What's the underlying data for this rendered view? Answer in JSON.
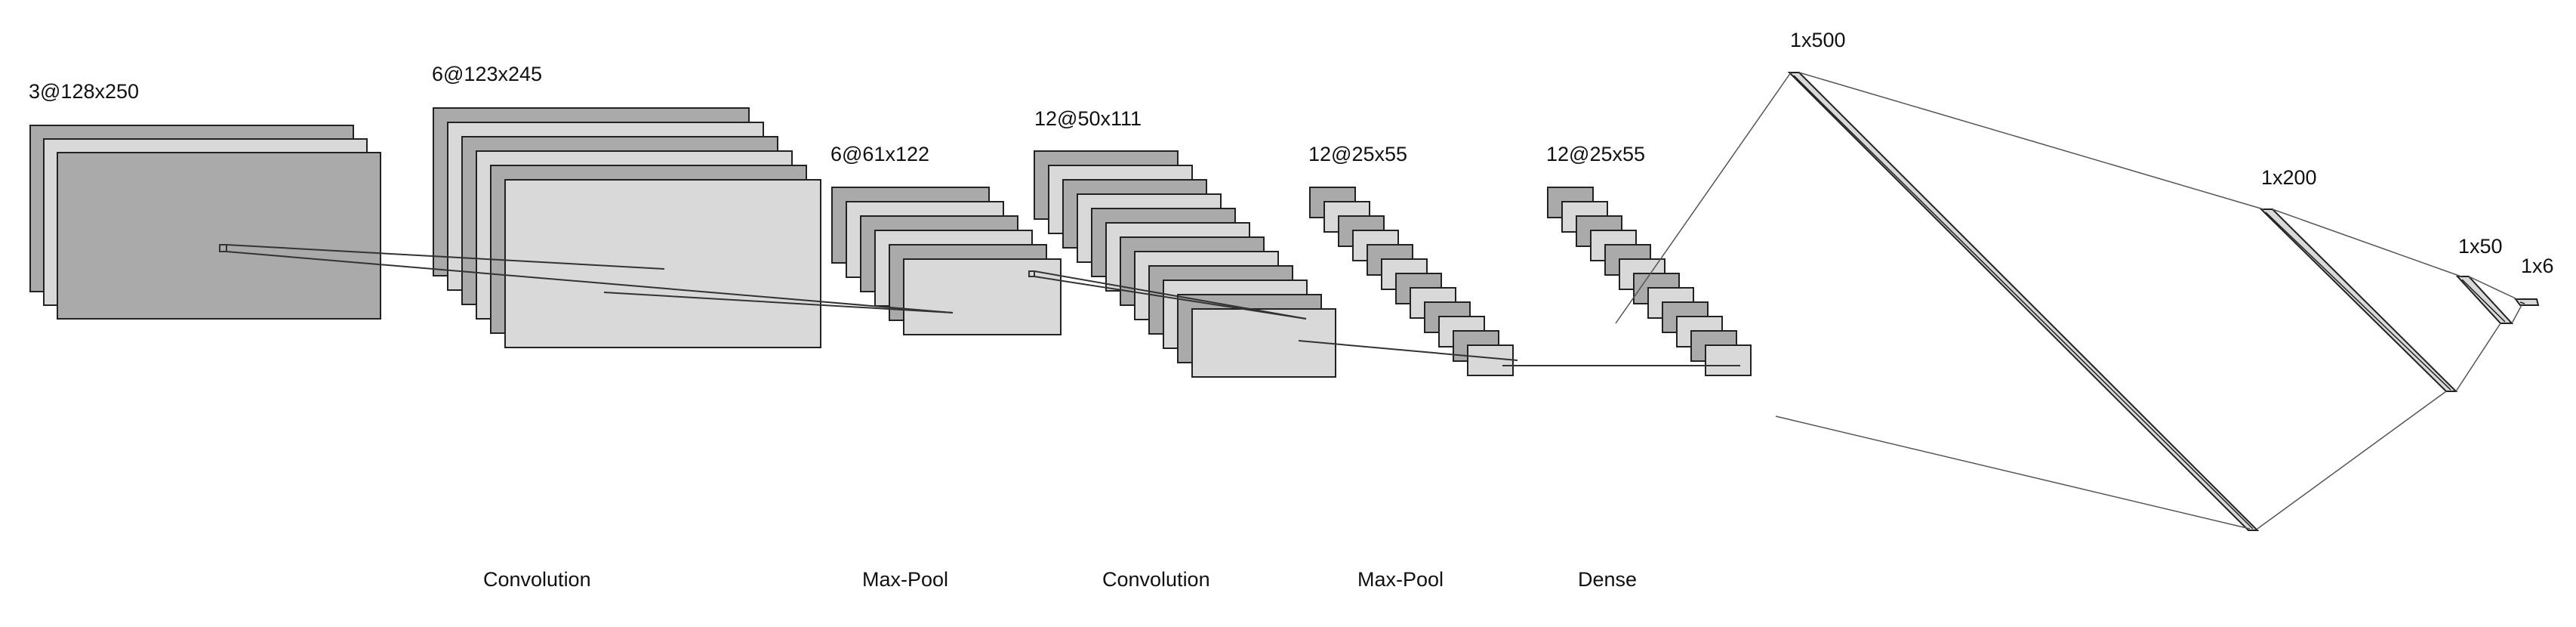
{
  "colors": {
    "dark_fill": "#aaaaaa",
    "light_fill": "#d9d9d9",
    "stroke": "#222222",
    "connector": "#333333",
    "text": "#111111"
  },
  "layers": [
    {
      "id": "input",
      "label": "3@128x250",
      "maps": 3
    },
    {
      "id": "conv1",
      "label": "6@123x245",
      "maps": 6
    },
    {
      "id": "pool1",
      "label": "6@61x122",
      "maps": 6
    },
    {
      "id": "conv2",
      "label": "12@50x111",
      "maps": 12
    },
    {
      "id": "pool2",
      "label": "12@25x55",
      "maps": 12
    },
    {
      "id": "dense_maps",
      "label": "12@25x55",
      "maps": 12
    },
    {
      "id": "fc500",
      "label": "1x500"
    },
    {
      "id": "fc200",
      "label": "1x200"
    },
    {
      "id": "fc50",
      "label": "1x50"
    },
    {
      "id": "fc6",
      "label": "1x6"
    }
  ],
  "operations": [
    "Convolution",
    "Max-Pool",
    "Convolution",
    "Max-Pool",
    "Dense"
  ]
}
